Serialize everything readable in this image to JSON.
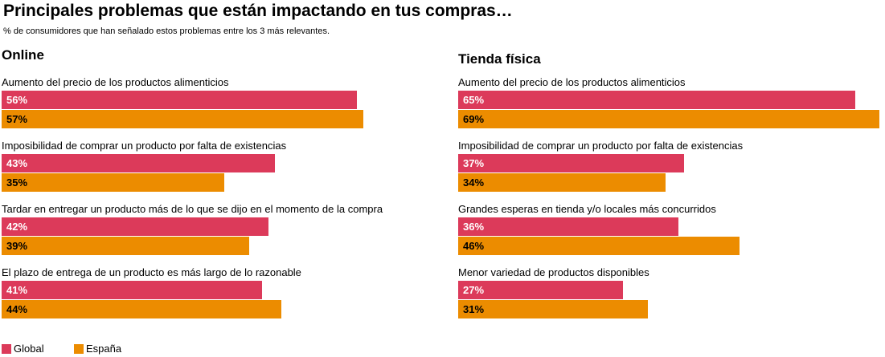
{
  "chart_data": {
    "type": "bar",
    "title": "Principales problemas que están impactando en tus compras…",
    "subtitle": "% de consumidores que han señalado estos problemas entre los 3 más relevantes.",
    "legend": {
      "position": "bottom-left",
      "items": [
        {
          "name": "Global",
          "color": "#dc3a5a"
        },
        {
          "name": "España",
          "color": "#ec8c00"
        }
      ]
    },
    "colors": {
      "global": "#dc3a5a",
      "espana": "#ec8c00",
      "global_label": "#ffffff",
      "espana_label": "#000000"
    },
    "panels": [
      {
        "title": "Online",
        "categories": [
          "Aumento del precio de los productos alimenticios",
          "Imposibilidad de comprar un producto por falta de existencias",
          "Tardar en entregar un producto más de lo que se dijo en el momento de la compra",
          "El plazo de entrega de un producto es más largo de lo razonable"
        ],
        "series": [
          {
            "name": "Global",
            "values": [
              56,
              43,
              42,
              41
            ]
          },
          {
            "name": "España",
            "values": [
              57,
              35,
              39,
              44
            ]
          }
        ]
      },
      {
        "title": "Tienda física",
        "categories": [
          "Aumento del precio de los productos alimenticios",
          "Imposibilidad de comprar un producto por falta de existencias",
          "Grandes esperas en tienda y/o locales más concurridos",
          "Menor variedad de productos disponibles"
        ],
        "series": [
          {
            "name": "Global",
            "values": [
              65,
              37,
              36,
              27
            ]
          },
          {
            "name": "España",
            "values": [
              69,
              34,
              46,
              31
            ]
          }
        ]
      }
    ],
    "value_format": "{v}%"
  }
}
